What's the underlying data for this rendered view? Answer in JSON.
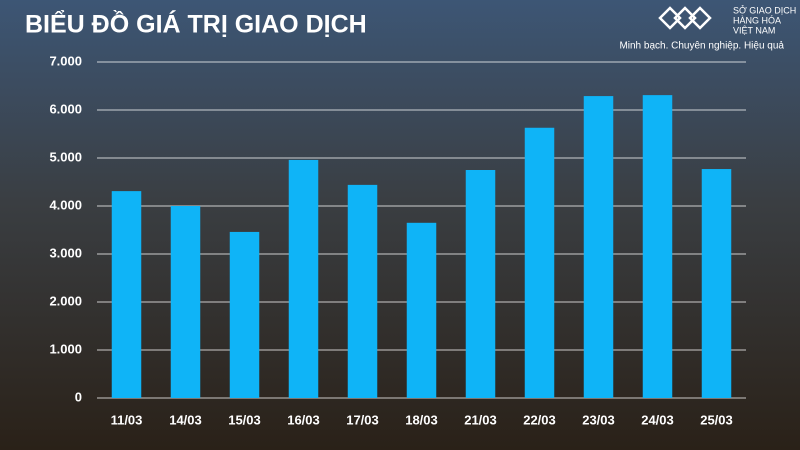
{
  "chart_data": {
    "type": "bar",
    "title": "BIỂU ĐỒ GIÁ TRỊ GIAO DỊCH",
    "logo": {
      "lines": [
        "SỞ GIAO DỊCH",
        "HÀNG HÓA",
        "VIỆT NAM"
      ],
      "tagline": "Minh bạch. Chuyên nghiệp. Hiệu quả"
    },
    "categories": [
      "11/03",
      "14/03",
      "15/03",
      "16/03",
      "17/03",
      "18/03",
      "21/03",
      "22/03",
      "23/03",
      "24/03",
      "25/03"
    ],
    "values": [
      4310,
      4000,
      3460,
      4960,
      4440,
      3650,
      4750,
      5630,
      6290,
      6310,
      4770
    ],
    "color": "#0fb4f7",
    "ylim": [
      0,
      7000
    ],
    "yticks": [
      0,
      {
        "value": 1000,
        "label": "1.000"
      },
      {
        "value": 2000,
        "label": "2.000"
      },
      {
        "value": 3000,
        "label": "3.000"
      },
      {
        "value": 4000,
        "label": "4.000"
      },
      {
        "value": 5000,
        "label": "5.000"
      },
      {
        "value": 6000,
        "label": "6.000"
      },
      {
        "value": 7000,
        "label": "7.000"
      }
    ],
    "grid": true
  }
}
